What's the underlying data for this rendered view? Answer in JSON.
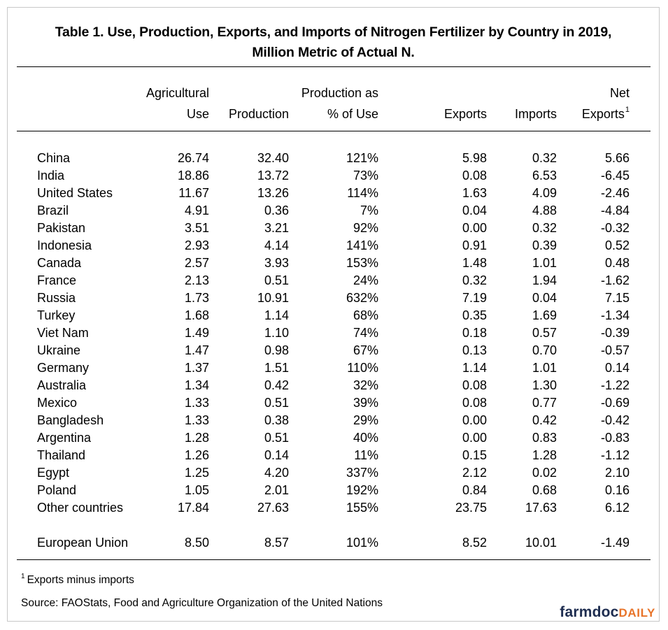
{
  "title": {
    "line1": "Table 1.  Use, Production, Exports, and Imports of Nitrogen Fertilizer by Country in 2019,",
    "line2": "Million Metric of Actual N."
  },
  "columns": [
    {
      "line1": "Agricultural",
      "line2": "Use"
    },
    {
      "line1": "",
      "line2": "Production"
    },
    {
      "line1": "Production as",
      "line2": "% of Use"
    },
    {
      "line1": "",
      "line2": "Exports"
    },
    {
      "line1": "",
      "line2": "Imports"
    },
    {
      "line1": "Net",
      "line2": "Exports",
      "footnote_mark": "1"
    }
  ],
  "rows": [
    {
      "country": "China",
      "use": "26.74",
      "production": "32.40",
      "pct": "121%",
      "exports": "5.98",
      "imports": "0.32",
      "net": "5.66"
    },
    {
      "country": "India",
      "use": "18.86",
      "production": "13.72",
      "pct": "73%",
      "exports": "0.08",
      "imports": "6.53",
      "net": "-6.45"
    },
    {
      "country": "United States",
      "use": "11.67",
      "production": "13.26",
      "pct": "114%",
      "exports": "1.63",
      "imports": "4.09",
      "net": "-2.46"
    },
    {
      "country": "Brazil",
      "use": "4.91",
      "production": "0.36",
      "pct": "7%",
      "exports": "0.04",
      "imports": "4.88",
      "net": "-4.84"
    },
    {
      "country": "Pakistan",
      "use": "3.51",
      "production": "3.21",
      "pct": "92%",
      "exports": "0.00",
      "imports": "0.32",
      "net": "-0.32"
    },
    {
      "country": "Indonesia",
      "use": "2.93",
      "production": "4.14",
      "pct": "141%",
      "exports": "0.91",
      "imports": "0.39",
      "net": "0.52"
    },
    {
      "country": "Canada",
      "use": "2.57",
      "production": "3.93",
      "pct": "153%",
      "exports": "1.48",
      "imports": "1.01",
      "net": "0.48"
    },
    {
      "country": "France",
      "use": "2.13",
      "production": "0.51",
      "pct": "24%",
      "exports": "0.32",
      "imports": "1.94",
      "net": "-1.62"
    },
    {
      "country": "Russia",
      "use": "1.73",
      "production": "10.91",
      "pct": "632%",
      "exports": "7.19",
      "imports": "0.04",
      "net": "7.15"
    },
    {
      "country": "Turkey",
      "use": "1.68",
      "production": "1.14",
      "pct": "68%",
      "exports": "0.35",
      "imports": "1.69",
      "net": "-1.34"
    },
    {
      "country": "Viet Nam",
      "use": "1.49",
      "production": "1.10",
      "pct": "74%",
      "exports": "0.18",
      "imports": "0.57",
      "net": "-0.39"
    },
    {
      "country": "Ukraine",
      "use": "1.47",
      "production": "0.98",
      "pct": "67%",
      "exports": "0.13",
      "imports": "0.70",
      "net": "-0.57"
    },
    {
      "country": "Germany",
      "use": "1.37",
      "production": "1.51",
      "pct": "110%",
      "exports": "1.14",
      "imports": "1.01",
      "net": "0.14"
    },
    {
      "country": "Australia",
      "use": "1.34",
      "production": "0.42",
      "pct": "32%",
      "exports": "0.08",
      "imports": "1.30",
      "net": "-1.22"
    },
    {
      "country": "Mexico",
      "use": "1.33",
      "production": "0.51",
      "pct": "39%",
      "exports": "0.08",
      "imports": "0.77",
      "net": "-0.69"
    },
    {
      "country": "Bangladesh",
      "use": "1.33",
      "production": "0.38",
      "pct": "29%",
      "exports": "0.00",
      "imports": "0.42",
      "net": "-0.42"
    },
    {
      "country": "Argentina",
      "use": "1.28",
      "production": "0.51",
      "pct": "40%",
      "exports": "0.00",
      "imports": "0.83",
      "net": "-0.83"
    },
    {
      "country": "Thailand",
      "use": "1.26",
      "production": "0.14",
      "pct": "11%",
      "exports": "0.15",
      "imports": "1.28",
      "net": "-1.12"
    },
    {
      "country": "Egypt",
      "use": "1.25",
      "production": "4.20",
      "pct": "337%",
      "exports": "2.12",
      "imports": "0.02",
      "net": "2.10"
    },
    {
      "country": "Poland",
      "use": "1.05",
      "production": "2.01",
      "pct": "192%",
      "exports": "0.84",
      "imports": "0.68",
      "net": "0.16"
    },
    {
      "country": "Other countries",
      "use": "17.84",
      "production": "27.63",
      "pct": "155%",
      "exports": "23.75",
      "imports": "17.63",
      "net": "6.12"
    }
  ],
  "summary_row": {
    "country": "European Union",
    "use": "8.50",
    "production": "8.57",
    "pct": "101%",
    "exports": "8.52",
    "imports": "10.01",
    "net": "-1.49"
  },
  "footnotes": {
    "note1_mark": "1",
    "note1_text": "Exports minus imports",
    "source": "Source:  FAOStats,  Food and Agriculture Organization of the United Nations"
  },
  "logo": {
    "part1": "farmdoc",
    "part2": "DAILY",
    "color1": "#1e2d50",
    "color2": "#e8742a"
  }
}
